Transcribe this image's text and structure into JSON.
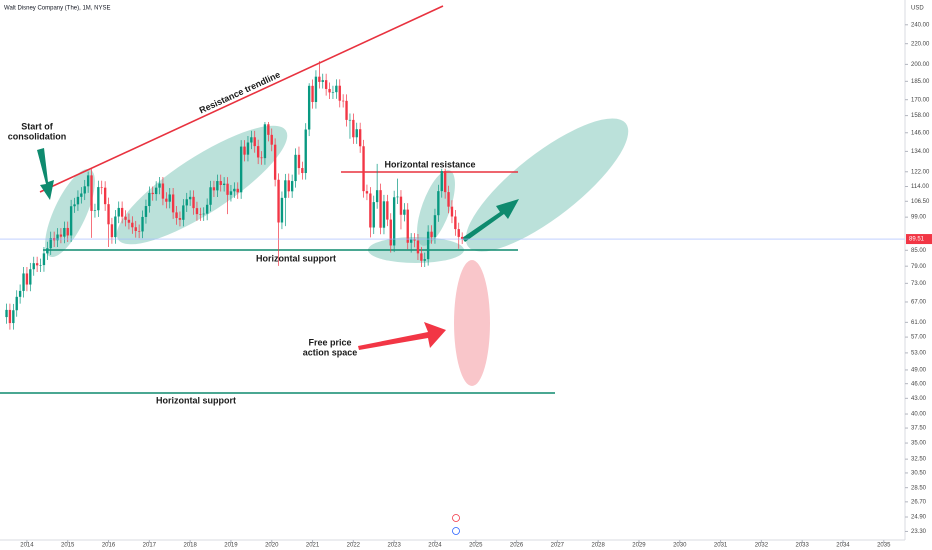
{
  "chart_data": {
    "type": "candlestick",
    "title": "Walt Disney Company (The), 1M, NYSE",
    "currency": "USD",
    "current_price": {
      "value": 89.51,
      "label": "89.51"
    },
    "annotations": [
      "Resistance trendline",
      "Start of",
      "consolidation",
      "Horizontal resistance",
      "Horizontal support",
      "Horizontal support",
      "Free price",
      "action space"
    ],
    "log_scale": true,
    "up_color": "#089981",
    "down_color": "#f23645",
    "xlim": [
      2013.34,
      2035.52
    ],
    "xticks": [
      2014,
      2015,
      2016,
      2017,
      2018,
      2019,
      2020,
      2021,
      2022,
      2023,
      2024,
      2025,
      2026,
      2027,
      2028,
      2029,
      2030,
      2031,
      2032,
      2033,
      2034,
      2035
    ],
    "ylim": [
      22.4,
      269
    ],
    "yticks": [
      {
        "value": 240,
        "label": "240.00"
      },
      {
        "value": 220,
        "label": "220.00"
      },
      {
        "value": 200,
        "label": "200.00"
      },
      {
        "value": 185,
        "label": "185.00"
      },
      {
        "value": 170,
        "label": "170.00"
      },
      {
        "value": 158,
        "label": "158.00"
      },
      {
        "value": 146,
        "label": "146.00"
      },
      {
        "value": 134,
        "label": "134.00"
      },
      {
        "value": 122,
        "label": "122.00"
      },
      {
        "value": 114,
        "label": "114.00"
      },
      {
        "value": 106.5,
        "label": "106.50"
      },
      {
        "value": 99,
        "label": "99.00"
      },
      {
        "value": 85,
        "label": "85.00"
      },
      {
        "value": 79,
        "label": "79.00"
      },
      {
        "value": 73,
        "label": "73.00"
      },
      {
        "value": 67,
        "label": "67.00"
      },
      {
        "value": 61,
        "label": "61.00"
      },
      {
        "value": 57,
        "label": "57.00"
      },
      {
        "value": 53,
        "label": "53.00"
      },
      {
        "value": 49,
        "label": "49.00"
      },
      {
        "value": 46,
        "label": "46.00"
      },
      {
        "value": 43,
        "label": "43.00"
      },
      {
        "value": 40,
        "label": "40.00"
      },
      {
        "value": 37.5,
        "label": "37.50"
      },
      {
        "value": 35,
        "label": "35.00"
      },
      {
        "value": 32.5,
        "label": "32.50"
      },
      {
        "value": 30.5,
        "label": "30.50"
      },
      {
        "value": 28.5,
        "label": "28.50"
      },
      {
        "value": 26.7,
        "label": "26.70"
      },
      {
        "value": 24.9,
        "label": "24.90"
      },
      {
        "value": 23.3,
        "label": "23.30"
      }
    ],
    "x": [
      2013.5,
      2013.583,
      2013.667,
      2013.75,
      2013.833,
      2013.917,
      2014,
      2014.083,
      2014.167,
      2014.25,
      2014.333,
      2014.417,
      2014.5,
      2014.583,
      2014.667,
      2014.75,
      2014.833,
      2014.917,
      2015,
      2015.083,
      2015.167,
      2015.25,
      2015.333,
      2015.417,
      2015.5,
      2015.583,
      2015.667,
      2015.75,
      2015.833,
      2015.917,
      2016,
      2016.083,
      2016.167,
      2016.25,
      2016.333,
      2016.417,
      2016.5,
      2016.583,
      2016.667,
      2016.75,
      2016.833,
      2016.917,
      2017,
      2017.083,
      2017.167,
      2017.25,
      2017.333,
      2017.417,
      2017.5,
      2017.583,
      2017.667,
      2017.75,
      2017.833,
      2017.917,
      2018,
      2018.083,
      2018.167,
      2018.25,
      2018.333,
      2018.417,
      2018.5,
      2018.583,
      2018.667,
      2018.75,
      2018.833,
      2018.917,
      2019,
      2019.083,
      2019.167,
      2019.25,
      2019.333,
      2019.417,
      2019.5,
      2019.583,
      2019.667,
      2019.75,
      2019.833,
      2019.917,
      2020,
      2020.083,
      2020.167,
      2020.25,
      2020.333,
      2020.417,
      2020.5,
      2020.583,
      2020.667,
      2020.75,
      2020.833,
      2020.917,
      2021,
      2021.083,
      2021.167,
      2021.25,
      2021.333,
      2021.417,
      2021.5,
      2021.583,
      2021.667,
      2021.75,
      2021.833,
      2021.917,
      2022,
      2022.083,
      2022.167,
      2022.25,
      2022.333,
      2022.417,
      2022.5,
      2022.583,
      2022.667,
      2022.75,
      2022.833,
      2022.917,
      2023,
      2023.083,
      2023.167,
      2023.25,
      2023.333,
      2023.417,
      2023.5,
      2023.583,
      2023.667,
      2023.75,
      2023.833,
      2023.917,
      2024,
      2024.083,
      2024.167,
      2024.25,
      2024.333,
      2024.417,
      2024.5,
      2024.583,
      2024.667
    ],
    "open": [
      62.5,
      64.6,
      60.8,
      64.5,
      68.6,
      70.5,
      76.4,
      72.6,
      77.9,
      80.1,
      79.3,
      79.4,
      83.8,
      85.8,
      89.9,
      89.0,
      91.4,
      90.5,
      94.2,
      91.0,
      104.1,
      105.0,
      108.7,
      110.4,
      114.1,
      120.0,
      101.9,
      102.2,
      113.7,
      113.4,
      105.1,
      95.8,
      90.3,
      99.3,
      103.3,
      99.2,
      97.8,
      96.5,
      94.5,
      92.9,
      92.7,
      99.1,
      104.2,
      110.7,
      110.1,
      113.4,
      115.6,
      107.8,
      106.3,
      109.9,
      101.2,
      98.6,
      97.8,
      104.5,
      107.5,
      108.7,
      103.2,
      100.4,
      100.3,
      100.6,
      104.8,
      113.6,
      112.0,
      116.9,
      114.8,
      115.5,
      109.7,
      111.5,
      112.8,
      111.0,
      137.0,
      132.0,
      139.6,
      143.0,
      137.3,
      130.3,
      129.9,
      151.8,
      144.6,
      138.2,
      117.6,
      96.6,
      108.2,
      117.3,
      111.5,
      116.9,
      131.9,
      124.1,
      121.3,
      148.2,
      181.2,
      168.2,
      189.0,
      184.5,
      186.0,
      178.6,
      175.8,
      176.0,
      181.3,
      169.2,
      169.1,
      154.9,
      154.9,
      143.0,
      148.4,
      137.2,
      111.6,
      110.4,
      94.4,
      106.1,
      112.1,
      94.3,
      106.5,
      97.9,
      86.9,
      108.5,
      108.8,
      100.1,
      102.5,
      88.0,
      89.3,
      88.9,
      83.8,
      81.0,
      81.6,
      92.6,
      90.3,
      99.9,
      111.6,
      122.4,
      111.1,
      103.9,
      99.3,
      93.7,
      90.4
    ],
    "high": [
      66.5,
      66.5,
      66.4,
      70.7,
      72.6,
      78.7,
      78.7,
      80.2,
      82.5,
      82.5,
      81.8,
      86.3,
      88.4,
      92.6,
      92.6,
      94.1,
      94.1,
      97.0,
      97.0,
      107.2,
      108.2,
      112.0,
      113.7,
      117.5,
      122.1,
      123.6,
      105.3,
      117.1,
      117.1,
      116.8,
      108.3,
      98.7,
      102.3,
      106.4,
      106.4,
      102.2,
      100.7,
      99.4,
      97.3,
      95.7,
      102.1,
      107.3,
      114.0,
      114.0,
      116.8,
      119.1,
      119.1,
      111.0,
      113.2,
      113.2,
      104.2,
      101.6,
      107.6,
      110.7,
      112.0,
      112.0,
      106.3,
      103.4,
      103.6,
      107.9,
      117.0,
      117.0,
      120.4,
      120.4,
      119.0,
      119.0,
      114.8,
      116.2,
      116.2,
      141.1,
      141.1,
      143.8,
      147.3,
      147.3,
      141.4,
      134.2,
      153.4,
      153.4,
      148.9,
      142.3,
      121.1,
      111.4,
      120.8,
      121.0,
      120.4,
      135.9,
      137.0,
      127.8,
      152.6,
      183.4,
      186.6,
      194.7,
      203.0,
      191.6,
      191.6,
      184.0,
      181.3,
      186.7,
      186.7,
      174.3,
      174.2,
      159.5,
      159.5,
      152.9,
      152.9,
      141.3,
      115.0,
      113.7,
      109.3,
      126.5,
      115.5,
      109.7,
      109.7,
      100.8,
      111.8,
      118.2,
      112.1,
      105.6,
      105.6,
      92.0,
      92.0,
      91.6,
      86.3,
      84.1,
      95.4,
      95.4,
      102.9,
      114.9,
      123.7,
      123.7,
      114.4,
      107.0,
      102.3,
      96.5,
      92.3
    ],
    "low": [
      60.6,
      59.0,
      59.0,
      62.6,
      66.5,
      68.4,
      70.4,
      70.4,
      75.6,
      76.9,
      76.9,
      77.0,
      81.3,
      83.2,
      86.3,
      86.3,
      87.8,
      87.8,
      88.3,
      88.3,
      101.0,
      101.9,
      105.4,
      107.1,
      110.7,
      90.0,
      98.8,
      99.1,
      110.0,
      101.9,
      86.3,
      87.6,
      87.6,
      96.3,
      96.2,
      94.9,
      93.6,
      91.7,
      90.1,
      89.9,
      89.9,
      96.1,
      101.1,
      106.8,
      106.8,
      110.0,
      104.6,
      103.1,
      103.1,
      98.2,
      95.6,
      94.9,
      94.9,
      101.4,
      104.3,
      100.1,
      97.4,
      97.3,
      97.3,
      97.6,
      101.7,
      108.6,
      108.6,
      111.4,
      111.4,
      100.4,
      106.4,
      108.2,
      107.7,
      107.7,
      128.0,
      128.0,
      135.4,
      133.2,
      126.4,
      126.0,
      126.0,
      140.3,
      134.1,
      114.1,
      79.1,
      93.7,
      95.0,
      108.2,
      108.2,
      113.4,
      120.4,
      117.7,
      117.7,
      143.8,
      163.2,
      163.2,
      179.0,
      179.0,
      173.2,
      170.5,
      170.5,
      170.7,
      164.1,
      164.0,
      150.3,
      142.0,
      138.7,
      138.7,
      133.1,
      108.3,
      107.1,
      90.2,
      91.6,
      102.9,
      91.5,
      91.5,
      95.0,
      84.1,
      84.3,
      105.2,
      93.6,
      97.1,
      85.4,
      84.1,
      86.2,
      81.3,
      78.7,
      78.7,
      79.2,
      87.6,
      87.6,
      96.9,
      108.3,
      107.8,
      100.8,
      96.3,
      90.9,
      85.6,
      87.5
    ],
    "close": [
      64.6,
      60.8,
      64.5,
      68.6,
      70.5,
      76.4,
      72.6,
      77.9,
      80.1,
      79.3,
      79.4,
      83.8,
      85.8,
      89.9,
      89.0,
      91.4,
      90.5,
      94.2,
      91.0,
      104.1,
      105.0,
      108.7,
      110.4,
      114.1,
      120.0,
      101.9,
      102.2,
      113.7,
      113.4,
      105.1,
      95.8,
      90.3,
      99.3,
      103.3,
      99.2,
      97.8,
      96.5,
      94.5,
      92.9,
      92.7,
      99.1,
      104.2,
      110.7,
      110.1,
      113.4,
      115.6,
      107.8,
      106.3,
      109.9,
      101.2,
      98.6,
      97.8,
      104.5,
      107.5,
      108.7,
      103.2,
      100.4,
      100.3,
      100.6,
      104.8,
      113.6,
      112.0,
      116.9,
      114.8,
      115.5,
      109.7,
      111.5,
      112.8,
      111.0,
      137.0,
      132.0,
      139.6,
      143.0,
      137.3,
      130.3,
      129.9,
      151.8,
      144.6,
      138.2,
      117.6,
      96.6,
      108.2,
      117.3,
      111.5,
      116.9,
      131.9,
      124.1,
      121.3,
      148.2,
      181.2,
      168.2,
      189.0,
      184.5,
      186.0,
      178.6,
      175.8,
      176.0,
      181.3,
      169.2,
      169.1,
      154.9,
      154.9,
      143.0,
      148.4,
      137.2,
      111.6,
      110.4,
      94.4,
      106.1,
      112.1,
      94.3,
      106.5,
      97.9,
      86.9,
      108.5,
      108.8,
      100.1,
      102.5,
      88.0,
      89.3,
      88.9,
      83.8,
      81.0,
      81.6,
      92.6,
      90.3,
      99.9,
      111.6,
      122.4,
      111.1,
      103.9,
      99.3,
      93.7,
      90.4,
      89.5
    ]
  }
}
